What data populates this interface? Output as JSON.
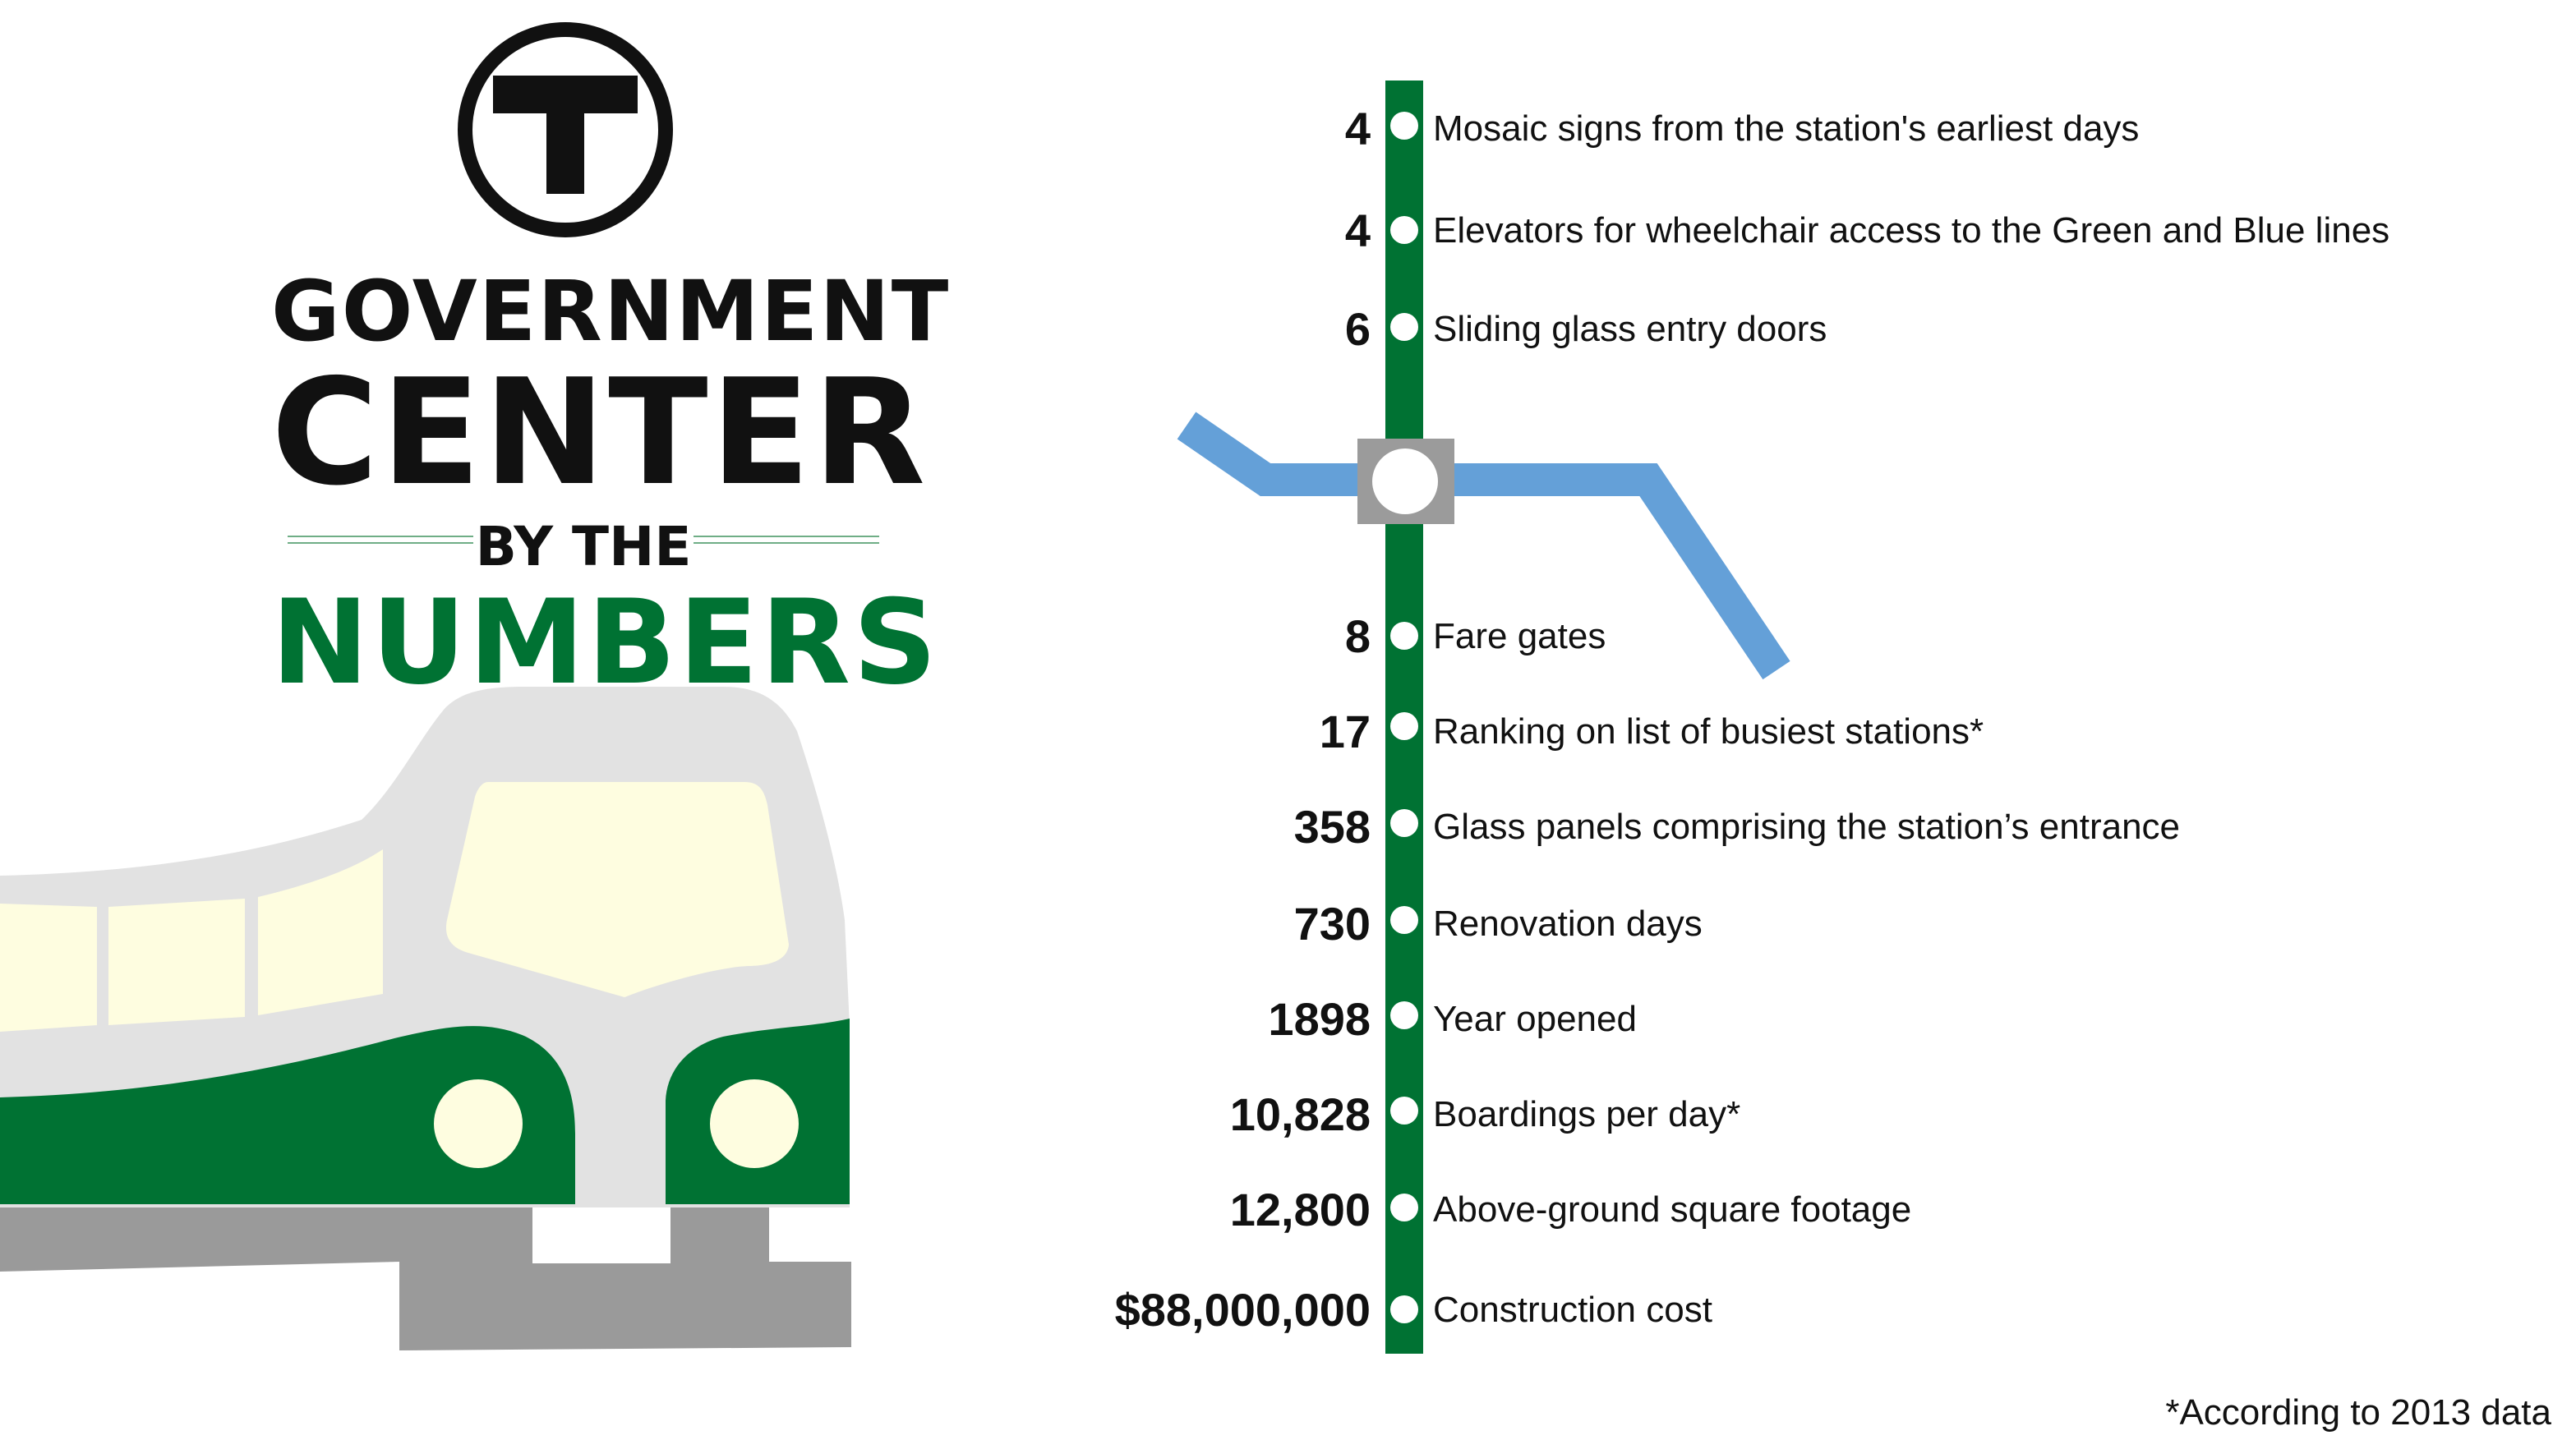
{
  "logo": {
    "letter": "T"
  },
  "title": {
    "line1": "GOVERNMENT",
    "line2": "CENTER",
    "line3": "BY THE",
    "line4": "NUMBERS"
  },
  "colors": {
    "green": "#007233",
    "blue": "#64a0d8",
    "gray_station": "#9b9b9b",
    "train_body": "#e2e2e2",
    "window": "#fefde0",
    "track": "#9a9a9a"
  },
  "stats": [
    {
      "number": "4",
      "label": "Mosaic signs from the station's earliest days"
    },
    {
      "number": "4",
      "label": "Elevators for wheelchair access to the Green and Blue lines"
    },
    {
      "number": "6",
      "label": "Sliding glass entry doors"
    },
    {
      "number": "8",
      "label": "Fare gates"
    },
    {
      "number": "17",
      "label": "Ranking on list of busiest stations*"
    },
    {
      "number": "358",
      "label": "Glass panels comprising the station’s entrance"
    },
    {
      "number": "730",
      "label": "Renovation days"
    },
    {
      "number": "1898",
      "label": "Year opened"
    },
    {
      "number": "10,828",
      "label": "Boardings per day*"
    },
    {
      "number": "12,800",
      "label": "Above-ground square footage"
    },
    {
      "number": "$88,000,000",
      "label": "Construction cost"
    }
  ],
  "footnote": "*According to 2013 data"
}
